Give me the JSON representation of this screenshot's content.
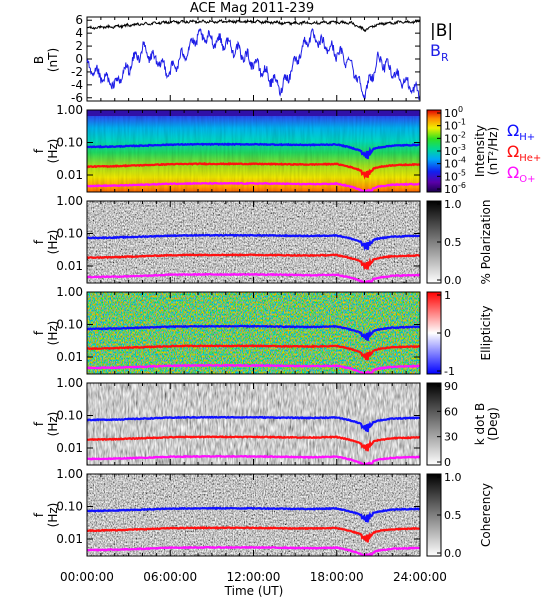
{
  "title": "ACE Mag 2011-239",
  "x_axis": {
    "label": "Time (UT)",
    "ticks": [
      "00:00:00",
      "06:00:00",
      "12:00:00",
      "18:00:00",
      "24:00:00"
    ],
    "range_hours": [
      0,
      24
    ]
  },
  "freq_ticks": [
    "1.00",
    "0.10",
    "0.01"
  ],
  "freq_range_hz": [
    0.003,
    1.0
  ],
  "freq_scale": "log",
  "legend": {
    "b_total": "|B|",
    "b_r": "B",
    "b_r_sub": "R",
    "h_plus": "Ω",
    "h_plus_sub": "H+",
    "he_plus": "Ω",
    "he_plus_sub": "He+",
    "o_plus": "Ω",
    "o_plus_sub": "O+"
  },
  "colors": {
    "b_total": "#000000",
    "b_r": "#1e1ee6",
    "h_plus": "#1010ff",
    "he_plus": "#ff1010",
    "o_plus": "#ff10ff"
  },
  "panels": [
    {
      "id": "field",
      "ylabel": "B",
      "ylabel2": "(nT)",
      "ytick_labels": [
        "6",
        "4",
        "2",
        "0",
        "-2",
        "-4",
        "-6"
      ]
    },
    {
      "id": "intensity",
      "ylabel": "f",
      "ylabel2": "(Hz)",
      "colorbar_label": "Intensity",
      "colorbar_label2": "(nT²/Hz)",
      "colorbar_ticks": [
        {
          "base": "10",
          "exp": "0"
        },
        {
          "base": "10",
          "exp": "-1"
        },
        {
          "base": "10",
          "exp": "-2"
        },
        {
          "base": "10",
          "exp": "-3"
        },
        {
          "base": "10",
          "exp": "-4"
        },
        {
          "base": "10",
          "exp": "-5"
        },
        {
          "base": "10",
          "exp": "-6"
        }
      ],
      "colormap": "rainbow"
    },
    {
      "id": "polarization",
      "ylabel": "f",
      "ylabel2": "(Hz)",
      "colorbar_label": "% Polarization",
      "colorbar_ticks": [
        "1.0",
        "0.5",
        "0.0"
      ],
      "colormap": "gray"
    },
    {
      "id": "ellipticity",
      "ylabel": "f",
      "ylabel2": "(Hz)",
      "colorbar_label": "Ellipticity",
      "colorbar_ticks": [
        "1",
        "0",
        "-1"
      ],
      "colormap": "bwr"
    },
    {
      "id": "kdotb",
      "ylabel": "f",
      "ylabel2": "(Hz)",
      "colorbar_label": "k dot B",
      "colorbar_label2": "(Deg)",
      "colorbar_ticks": [
        "90",
        "60",
        "30",
        "0"
      ],
      "colormap": "gray"
    },
    {
      "id": "coherency",
      "ylabel": "f",
      "ylabel2": "(Hz)",
      "colorbar_label": "Coherency",
      "colorbar_ticks": [
        "1.0",
        "0.5",
        "0.0"
      ],
      "colormap": "gray"
    }
  ],
  "chart_data": {
    "type": "line",
    "title": "ACE Mag 2011-239",
    "xlabel": "Time (UT)",
    "x_hours": [
      0,
      2,
      4,
      6,
      8,
      10,
      12,
      14,
      16,
      18,
      19,
      20,
      21,
      22,
      24
    ],
    "field_panel": {
      "ylabel": "B (nT)",
      "ylim": [
        -6.5,
        6.5
      ],
      "series": [
        {
          "name": "|B|",
          "values": [
            4.8,
            5.0,
            5.4,
            5.7,
            5.8,
            5.8,
            5.8,
            5.6,
            5.6,
            5.7,
            5.6,
            4.5,
            5.4,
            5.6,
            5.8
          ]
        },
        {
          "name": "B",
          "values": [
            -1.5,
            -4.0,
            1.5,
            -2.0,
            3.5,
            2.5,
            -0.5,
            -4.5,
            3.5,
            1.0,
            -0.5,
            -5.5,
            0.0,
            -2.0,
            -5.5
          ]
        }
      ]
    },
    "gyrofrequency_lines_hz": [
      {
        "name": "Ω",
        "values": [
          0.073,
          0.075,
          0.08,
          0.086,
          0.088,
          0.088,
          0.088,
          0.086,
          0.084,
          0.087,
          0.07,
          0.05,
          0.07,
          0.08,
          0.085
        ]
      },
      {
        "name": "Ω",
        "values": [
          0.018,
          0.0187,
          0.02,
          0.0215,
          0.022,
          0.022,
          0.022,
          0.0215,
          0.021,
          0.0218,
          0.0175,
          0.0125,
          0.0175,
          0.02,
          0.0212
        ]
      },
      {
        "name": "Ω",
        "values": [
          0.0046,
          0.0047,
          0.005,
          0.0054,
          0.0055,
          0.0055,
          0.0055,
          0.0054,
          0.0052,
          0.0054,
          0.0044,
          0.0031,
          0.0044,
          0.005,
          0.0053
        ]
      }
    ]
  }
}
